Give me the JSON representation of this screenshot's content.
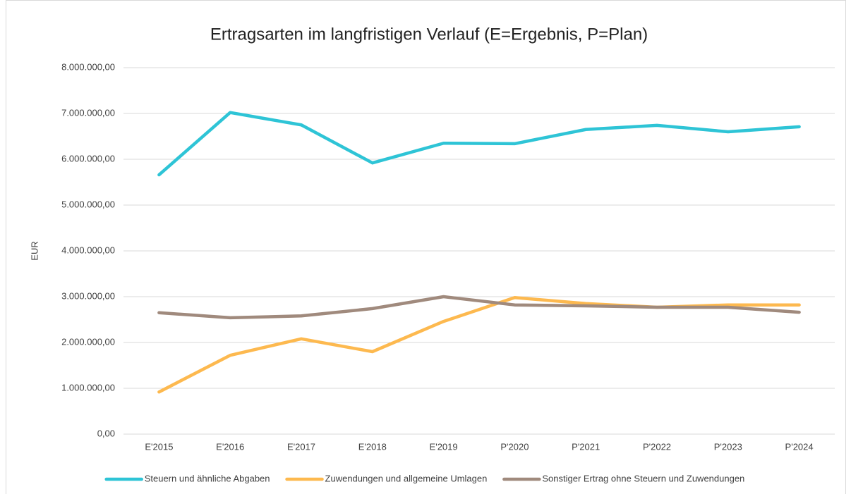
{
  "chart_data": {
    "type": "line",
    "title": "Ertragsarten im langfristigen Verlauf (E=Ergebnis, P=Plan)",
    "y_label": "EUR",
    "categories": [
      "E'2015",
      "E'2016",
      "E'2017",
      "E'2018",
      "E'2019",
      "P'2020",
      "P'2021",
      "P'2022",
      "P'2023",
      "P'2024"
    ],
    "series": [
      {
        "name": "Steuern und ähnliche Abgaben",
        "color": "#2ec4d6",
        "values": [
          5660000,
          7020000,
          6750000,
          5920000,
          6350000,
          6340000,
          6650000,
          6740000,
          6600000,
          6710000
        ]
      },
      {
        "name": "Zuwendungen und allgemeine Umlagen",
        "color": "#fdb94f",
        "values": [
          920000,
          1720000,
          2080000,
          1800000,
          2460000,
          2980000,
          2850000,
          2770000,
          2820000,
          2820000
        ]
      },
      {
        "name": "Sonstiger Ertrag ohne Steuern und Zuwendungen",
        "color": "#a08a7d",
        "values": [
          2650000,
          2540000,
          2580000,
          2740000,
          3000000,
          2820000,
          2800000,
          2770000,
          2770000,
          2660000
        ]
      }
    ],
    "ylim": [
      0,
      8000000
    ],
    "yticks": [
      {
        "value": 0,
        "label": "0,00"
      },
      {
        "value": 1000000,
        "label": "1.000.000,00"
      },
      {
        "value": 2000000,
        "label": "2.000.000,00"
      },
      {
        "value": 3000000,
        "label": "3.000.000,00"
      },
      {
        "value": 4000000,
        "label": "4.000.000,00"
      },
      {
        "value": 5000000,
        "label": "5.000.000,00"
      },
      {
        "value": 6000000,
        "label": "6.000.000,00"
      },
      {
        "value": 7000000,
        "label": "7.000.000,00"
      },
      {
        "value": 8000000,
        "label": "8.000.000,00"
      }
    ],
    "grid": true,
    "legend": "bottom"
  }
}
